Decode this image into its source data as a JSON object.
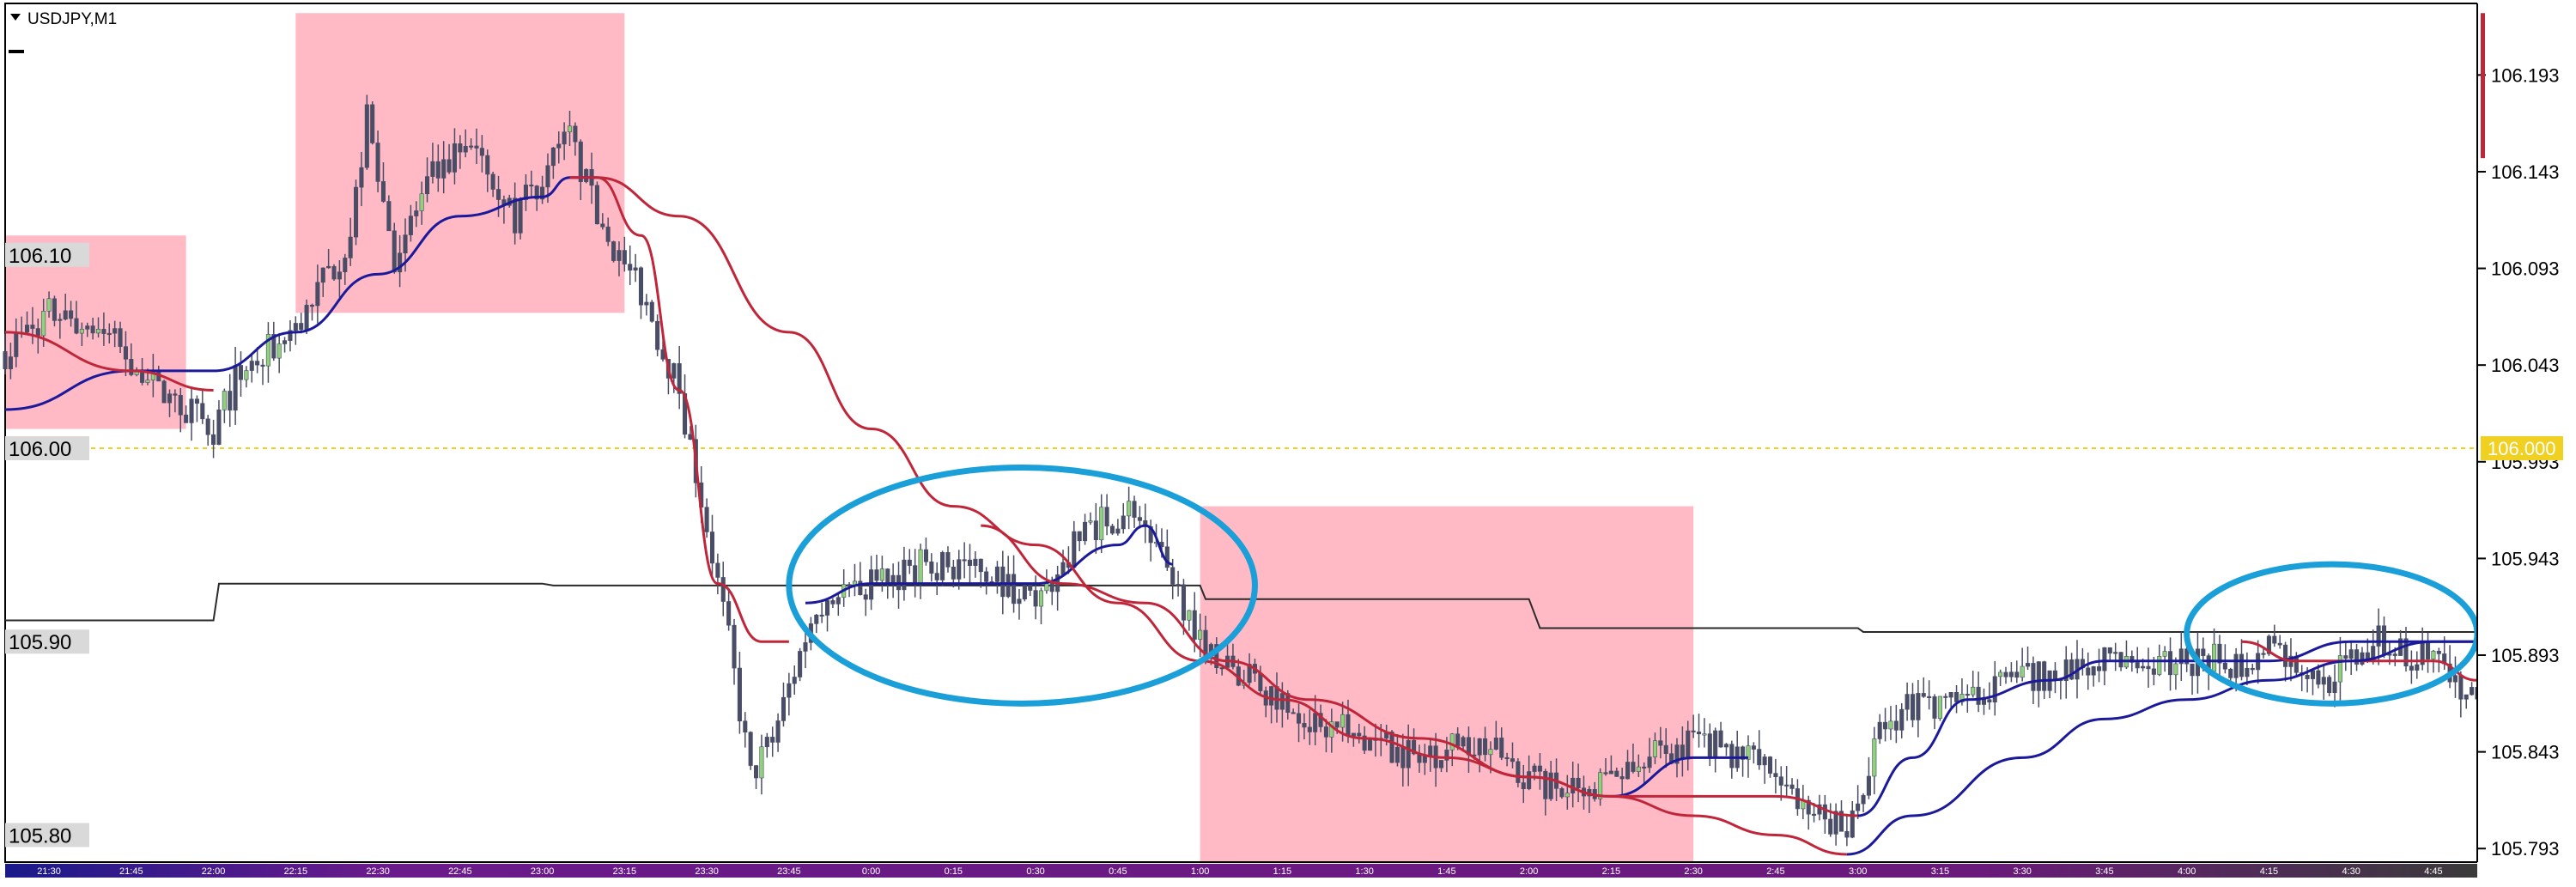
{
  "window": {
    "title": "USDJPY,M1"
  },
  "colors": {
    "background": "#ffffff",
    "candle": "#4a4d66",
    "candle_up": "#8fd27a",
    "ma_fast": "#1a1a9a",
    "ma_slow": "#c0263a",
    "ma_long": "#2a2a2a",
    "shade": "#ffb6c3",
    "ellipse": "#1a9fd8",
    "level_line": "#f0d020",
    "axis_bar": "#55306a"
  },
  "chart_data": {
    "type": "candlestick",
    "symbol": "USDJPY",
    "timeframe": "M1",
    "price_axis": {
      "ticks": [
        "106.193",
        "106.143",
        "106.093",
        "106.043",
        "105.993",
        "105.943",
        "105.893",
        "105.843",
        "105.793"
      ],
      "range": [
        105.786,
        106.23
      ]
    },
    "time_axis": {
      "ticks": [
        "21:30",
        "21:45",
        "22:00",
        "22:15",
        "22:30",
        "22:45",
        "23:00",
        "23:15",
        "23:30",
        "23:45",
        "0:00",
        "0:15",
        "0:30",
        "0:45",
        "1:00",
        "1:15",
        "1:30",
        "1:45",
        "2:00",
        "2:15",
        "2:30",
        "2:45",
        "3:00",
        "3:15",
        "3:30",
        "3:45",
        "4:00",
        "4:15",
        "4:30",
        "4:45"
      ]
    },
    "level_labels": [
      "106.10",
      "106.00",
      "105.90",
      "105.80"
    ],
    "current_price": "106.000",
    "close_series_anchors": [
      [
        "21:22",
        106.05
      ],
      [
        "21:30",
        106.07
      ],
      [
        "21:40",
        106.06
      ],
      [
        "21:50",
        106.03
      ],
      [
        "22:00",
        106.01
      ],
      [
        "22:05",
        106.04
      ],
      [
        "22:15",
        106.06
      ],
      [
        "22:25",
        106.11
      ],
      [
        "22:28",
        106.17
      ],
      [
        "22:33",
        106.1
      ],
      [
        "22:40",
        106.14
      ],
      [
        "22:48",
        106.16
      ],
      [
        "22:55",
        106.12
      ],
      [
        "23:05",
        106.16
      ],
      [
        "23:10",
        106.12
      ],
      [
        "23:18",
        106.08
      ],
      [
        "23:25",
        106.03
      ],
      [
        "23:30",
        105.96
      ],
      [
        "23:34",
        105.9
      ],
      [
        "23:38",
        105.83
      ],
      [
        "23:42",
        105.85
      ],
      [
        "23:50",
        105.92
      ],
      [
        "0:00",
        105.93
      ],
      [
        "0:10",
        105.94
      ],
      [
        "0:20",
        105.94
      ],
      [
        "0:30",
        105.92
      ],
      [
        "0:40",
        105.96
      ],
      [
        "0:48",
        105.97
      ],
      [
        "0:55",
        105.93
      ],
      [
        "1:03",
        105.89
      ],
      [
        "1:10",
        105.88
      ],
      [
        "1:20",
        105.86
      ],
      [
        "1:30",
        105.85
      ],
      [
        "1:40",
        105.84
      ],
      [
        "1:50",
        105.85
      ],
      [
        "2:00",
        105.83
      ],
      [
        "2:10",
        105.82
      ],
      [
        "2:20",
        105.84
      ],
      [
        "2:30",
        105.85
      ],
      [
        "2:40",
        105.84
      ],
      [
        "2:50",
        105.82
      ],
      [
        "2:58",
        105.8
      ],
      [
        "3:05",
        105.86
      ],
      [
        "3:15",
        105.87
      ],
      [
        "3:30",
        105.88
      ],
      [
        "3:45",
        105.89
      ],
      [
        "4:00",
        105.89
      ],
      [
        "4:10",
        105.89
      ],
      [
        "4:15",
        105.9
      ],
      [
        "4:25",
        105.88
      ],
      [
        "4:35",
        105.9
      ],
      [
        "4:45",
        105.89
      ],
      [
        "4:53",
        105.87
      ]
    ],
    "moving_averages": [
      {
        "color_key": "ma_fast",
        "anchors": [
          [
            "21:22",
            106.02
          ],
          [
            "21:45",
            106.04
          ],
          [
            "22:00",
            106.04
          ],
          [
            "22:15",
            106.06
          ],
          [
            "22:30",
            106.09
          ],
          [
            "22:45",
            106.12
          ],
          [
            "23:00",
            106.13
          ],
          [
            "23:05",
            106.14
          ],
          [
            "23:10",
            106.14
          ]
        ]
      },
      {
        "color_key": "ma_fast",
        "anchors": [
          [
            "23:48",
            105.92
          ],
          [
            "0:00",
            105.93
          ],
          [
            "0:15",
            105.93
          ],
          [
            "0:30",
            105.93
          ],
          [
            "0:45",
            105.95
          ],
          [
            "0:50",
            105.96
          ],
          [
            "0:55",
            105.94
          ]
        ]
      },
      {
        "color_key": "ma_fast",
        "anchors": [
          [
            "2:15",
            105.82
          ],
          [
            "2:30",
            105.84
          ],
          [
            "2:40",
            105.84
          ]
        ]
      },
      {
        "color_key": "ma_fast",
        "anchors": [
          [
            "3:00",
            105.81
          ],
          [
            "3:10",
            105.84
          ],
          [
            "3:20",
            105.87
          ],
          [
            "3:35",
            105.88
          ],
          [
            "3:45",
            105.89
          ],
          [
            "4:00",
            105.89
          ],
          [
            "4:15",
            105.89
          ],
          [
            "4:30",
            105.9
          ],
          [
            "4:45",
            105.9
          ],
          [
            "4:53",
            105.9
          ]
        ]
      },
      {
        "color_key": "ma_slow",
        "anchors": [
          [
            "21:22",
            106.06
          ],
          [
            "21:45",
            106.04
          ],
          [
            "22:00",
            106.03
          ]
        ]
      },
      {
        "color_key": "ma_slow",
        "anchors": [
          [
            "23:10",
            106.14
          ],
          [
            "23:18",
            106.11
          ],
          [
            "23:25",
            106.03
          ],
          [
            "23:32",
            105.93
          ],
          [
            "23:40",
            105.9
          ],
          [
            "23:45",
            105.9
          ]
        ]
      },
      {
        "color_key": "ma_slow",
        "anchors": [
          [
            "0:20",
            105.96
          ],
          [
            "0:35",
            105.93
          ],
          [
            "0:50",
            105.92
          ],
          [
            "1:05",
            105.89
          ],
          [
            "1:20",
            105.87
          ],
          [
            "1:40",
            105.85
          ],
          [
            "2:00",
            105.83
          ],
          [
            "2:15",
            105.82
          ],
          [
            "2:30",
            105.82
          ],
          [
            "2:45",
            105.82
          ],
          [
            "3:00",
            105.81
          ]
        ]
      },
      {
        "color_key": "ma_slow",
        "anchors": [
          [
            "4:10",
            105.9
          ],
          [
            "4:20",
            105.89
          ],
          [
            "4:35",
            105.89
          ],
          [
            "4:45",
            105.89
          ],
          [
            "4:53",
            105.88
          ]
        ]
      },
      {
        "color_key": "ma_slow",
        "anchors": [
          [
            "23:05",
            106.14
          ],
          [
            "23:10",
            106.14
          ],
          [
            "23:25",
            106.12
          ],
          [
            "23:45",
            106.06
          ],
          [
            "0:00",
            106.01
          ],
          [
            "0:15",
            105.97
          ],
          [
            "0:30",
            105.95
          ],
          [
            "0:45",
            105.92
          ],
          [
            "1:00",
            105.89
          ],
          [
            "1:15",
            105.87
          ],
          [
            "1:30",
            105.85
          ],
          [
            "1:45",
            105.84
          ],
          [
            "2:00",
            105.83
          ],
          [
            "2:15",
            105.82
          ],
          [
            "2:30",
            105.81
          ],
          [
            "2:45",
            105.8
          ],
          [
            "2:58",
            105.79
          ]
        ]
      },
      {
        "color_key": "ma_fast",
        "anchors": [
          [
            "2:58",
            105.79
          ],
          [
            "3:10",
            105.81
          ],
          [
            "3:30",
            105.84
          ],
          [
            "3:45",
            105.86
          ],
          [
            "4:00",
            105.87
          ],
          [
            "4:15",
            105.88
          ],
          [
            "4:30",
            105.89
          ],
          [
            "4:45",
            105.9
          ],
          [
            "4:53",
            105.9
          ]
        ]
      }
    ],
    "long_line": {
      "color_key": "ma_long",
      "steps": [
        [
          "21:22",
          105.911
        ],
        [
          "22:00",
          105.911
        ],
        [
          "22:01",
          105.93
        ],
        [
          "23:00",
          105.93
        ],
        [
          "23:02",
          105.929
        ],
        [
          "1:00",
          105.929
        ],
        [
          "1:01",
          105.922
        ],
        [
          "2:00",
          105.922
        ],
        [
          "2:02",
          105.907
        ],
        [
          "3:00",
          105.907
        ],
        [
          "3:01",
          105.905
        ],
        [
          "4:53",
          105.905
        ]
      ]
    },
    "highlight_zones": [
      {
        "from": "21:22",
        "to": "21:55",
        "low": 106.01,
        "high": 106.11
      },
      {
        "from": "22:15",
        "to": "23:15",
        "low": 106.07,
        "high": 106.225
      },
      {
        "from": "1:00",
        "to": "2:30",
        "low": 105.786,
        "high": 105.97
      }
    ],
    "ellipses": [
      {
        "from": "23:45",
        "to": "1:10",
        "low": 105.868,
        "high": 105.99
      },
      {
        "from": "4:00",
        "to": "4:53",
        "low": 105.868,
        "high": 105.94
      }
    ]
  }
}
